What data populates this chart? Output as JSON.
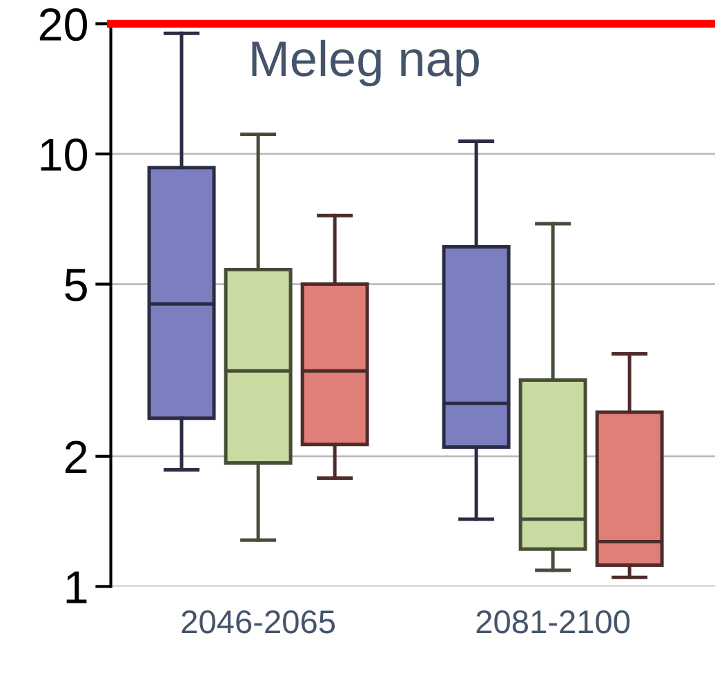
{
  "chart_data": {
    "type": "box",
    "title": "Meleg nap",
    "categories": [
      "2046-2065",
      "2081-2100"
    ],
    "series": [
      {
        "color": "#7b7fc0",
        "boxes": [
          {
            "low": 1.86,
            "q1": 2.45,
            "median": 4.5,
            "q3": 9.3,
            "high": 19
          },
          {
            "low": 1.43,
            "q1": 2.1,
            "median": 2.65,
            "q3": 6.1,
            "high": 10.7
          }
        ]
      },
      {
        "color": "#c9dba0",
        "boxes": [
          {
            "low": 1.28,
            "q1": 1.93,
            "median": 3.15,
            "q3": 5.4,
            "high": 11.1
          },
          {
            "low": 1.09,
            "q1": 1.22,
            "median": 1.43,
            "q3": 3,
            "high": 6.9
          }
        ]
      },
      {
        "color": "#e07f78",
        "boxes": [
          {
            "low": 1.78,
            "q1": 2.13,
            "median": 3.15,
            "q3": 5,
            "high": 7.2
          },
          {
            "low": 1.05,
            "q1": 1.12,
            "median": 1.27,
            "q3": 2.53,
            "high": 3.45
          }
        ]
      }
    ],
    "log": true,
    "ylim": [
      1,
      20
    ],
    "yticks": [
      1,
      2,
      5,
      10,
      20
    ],
    "grid": "y",
    "ref_lines": [
      {
        "axis": "y",
        "value": 20,
        "color": "#ff0000"
      }
    ]
  }
}
